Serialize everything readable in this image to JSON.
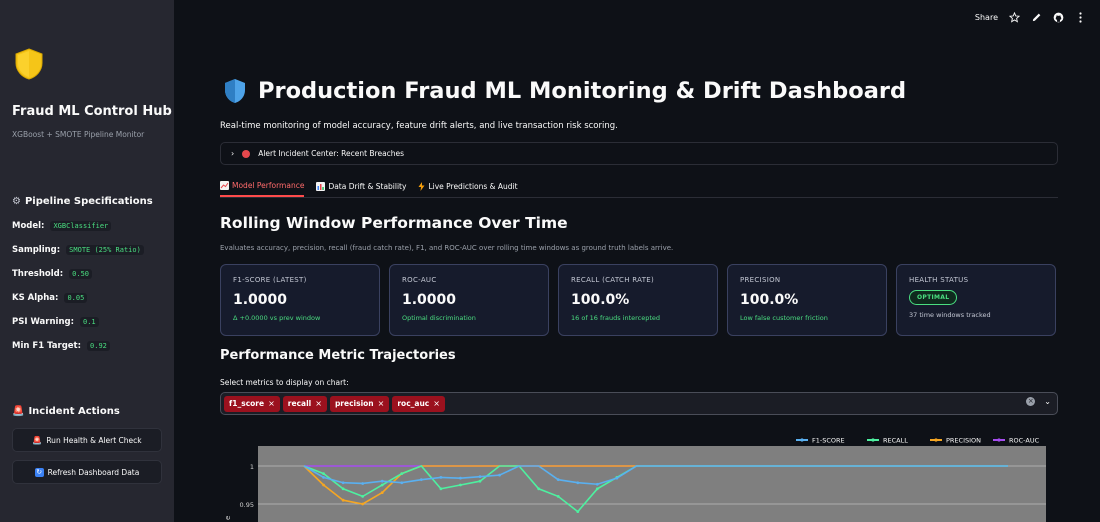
{
  "sidebar": {
    "title": "Fraud ML Control Hub",
    "subtitle": "XGBoost + SMOTE Pipeline Monitor",
    "specs_heading": "Pipeline Specifications",
    "specs": [
      {
        "label": "Model:",
        "value": "XGBClassifier"
      },
      {
        "label": "Sampling:",
        "value": "SMOTE (25% Ratio)"
      },
      {
        "label": "Threshold:",
        "value": "0.50"
      },
      {
        "label": "KS Alpha:",
        "value": "0.05"
      },
      {
        "label": "PSI Warning:",
        "value": "0.1"
      },
      {
        "label": "Min F1 Target:",
        "value": "0.92"
      }
    ],
    "actions_heading": "Incident Actions",
    "run_check_label": "Run Health & Alert Check",
    "refresh_label": "Refresh Dashboard Data"
  },
  "topbar": {
    "share_label": "Share"
  },
  "page": {
    "title": "Production Fraud ML Monitoring & Drift Dashboard",
    "subtitle": "Real-time monitoring of model accuracy, feature drift alerts, and live transaction risk scoring.",
    "expander_label": "Alert Incident Center: Recent Breaches",
    "tabs": [
      {
        "label": "Model Performance",
        "icon": "chart-trend-icon"
      },
      {
        "label": "Data Drift & Stability",
        "icon": "bar-chart-icon"
      },
      {
        "label": "Live Predictions & Audit",
        "icon": "lightning-icon"
      }
    ],
    "section_title": "Rolling Window Performance Over Time",
    "section_caption": "Evaluates accuracy, precision, recall (fraud catch rate), F1, and ROC-AUC over rolling time windows as ground truth labels arrive.",
    "cards": [
      {
        "label": "F1-SCORE (LATEST)",
        "value": "1.0000",
        "delta": "Δ +0.0000 vs prev window"
      },
      {
        "label": "ROC-AUC",
        "value": "1.0000",
        "delta": "Optimal discrimination"
      },
      {
        "label": "RECALL (CATCH RATE)",
        "value": "100.0%",
        "delta": "16 of 16 frauds intercepted"
      },
      {
        "label": "PRECISION",
        "value": "100.0%",
        "delta": "Low false customer friction"
      }
    ],
    "health": {
      "label": "HEALTH STATUS",
      "badge": "OPTIMAL",
      "note": "37 time windows tracked"
    },
    "trajectories_title": "Performance Metric Trajectories",
    "select_label": "Select metrics to display on chart:",
    "selected_metrics": [
      "f1_score",
      "recall",
      "precision",
      "roc_auc"
    ],
    "chip_remove": "×"
  },
  "colors": {
    "accent": "#ff4b4b",
    "chip": "#9b111e",
    "f1": "#5ab0f0",
    "recall": "#4ef0a0",
    "precision": "#f5a623",
    "roc_auc": "#a64df0"
  },
  "chart_data": {
    "type": "line",
    "ytick_labels": [
      "1",
      "0.95"
    ],
    "ylabel_visible": "e",
    "series": [
      {
        "name": "F1-SCORE",
        "color": "#5ab0f0",
        "values": [
          1,
          0.985,
          0.978,
          0.977,
          0.98,
          0.978,
          0.982,
          0.985,
          0.984,
          0.986,
          0.988,
          1,
          1,
          0.982,
          0.978,
          0.976,
          0.984,
          1,
          1,
          1,
          1,
          1,
          1,
          1,
          1,
          1,
          1,
          1,
          1,
          1,
          1,
          1,
          1,
          1,
          1,
          1,
          1
        ]
      },
      {
        "name": "RECALL",
        "color": "#4ef0a0",
        "values": [
          1,
          0.99,
          0.97,
          0.96,
          0.975,
          0.99,
          1,
          0.97,
          0.975,
          0.98,
          1,
          1,
          0.97,
          0.96,
          0.94,
          0.97,
          0.985,
          1,
          1,
          1,
          1,
          1,
          1,
          1,
          1,
          1,
          1,
          1,
          1,
          1,
          1,
          1,
          1,
          1,
          1,
          1,
          1
        ]
      },
      {
        "name": "PRECISION",
        "color": "#f5a623",
        "values": [
          1,
          0.975,
          0.955,
          0.95,
          0.965,
          0.99,
          1,
          1,
          1,
          1,
          1,
          1,
          1,
          1,
          1,
          1,
          1,
          1,
          1,
          1,
          1,
          1,
          1,
          1,
          1,
          1,
          1,
          1,
          1,
          1,
          1,
          1,
          1,
          1,
          1,
          1,
          1
        ]
      },
      {
        "name": "ROC-AUC",
        "color": "#a64df0",
        "values": [
          1,
          1,
          1,
          1,
          1,
          1,
          1,
          1,
          1,
          1,
          1,
          1,
          1,
          1,
          1,
          1,
          1,
          1,
          1,
          1,
          1,
          1,
          1,
          1,
          1,
          1,
          1,
          1,
          1,
          1,
          1,
          1,
          1,
          1,
          1,
          1,
          1
        ]
      }
    ]
  }
}
